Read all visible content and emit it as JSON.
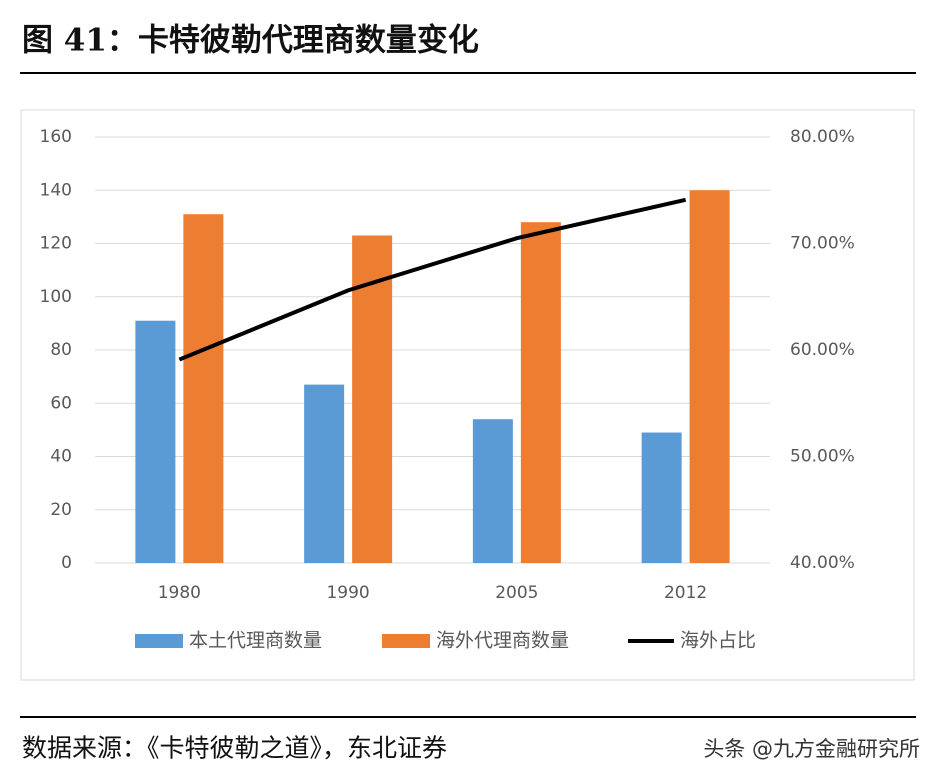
{
  "chart_data": {
    "type": "bar",
    "title": "图 41：卡特彼勒代理商数量变化",
    "source": "数据来源：《卡特彼勒之道》，东北证券",
    "watermark": "头条 @九方金融研究所",
    "categories": [
      "1980",
      "1990",
      "2005",
      "2012"
    ],
    "series": [
      {
        "name": "本土代理商数量",
        "type": "bar",
        "color": "#5b9bd5",
        "values": [
          91,
          67,
          54,
          49
        ]
      },
      {
        "name": "海外代理商数量",
        "type": "bar",
        "color": "#ed7d31",
        "values": [
          131,
          123,
          128,
          140
        ]
      },
      {
        "name": "海外占比",
        "type": "line",
        "color": "#000000",
        "axis": "y2",
        "values": [
          59.1,
          65.6,
          70.5,
          74.1
        ]
      }
    ],
    "ylim": [
      0,
      160
    ],
    "yticks": [
      0,
      20,
      40,
      60,
      80,
      100,
      120,
      140,
      160
    ],
    "y2lim": [
      40,
      80
    ],
    "y2ticks": [
      {
        "value": 40,
        "label": "40.00%"
      },
      {
        "value": 50,
        "label": "50.00%"
      },
      {
        "value": 60,
        "label": "60.00%"
      },
      {
        "value": 70,
        "label": "70.00%"
      },
      {
        "value": 80,
        "label": "80.00%"
      }
    ],
    "grid": true,
    "legend": "bottom"
  }
}
